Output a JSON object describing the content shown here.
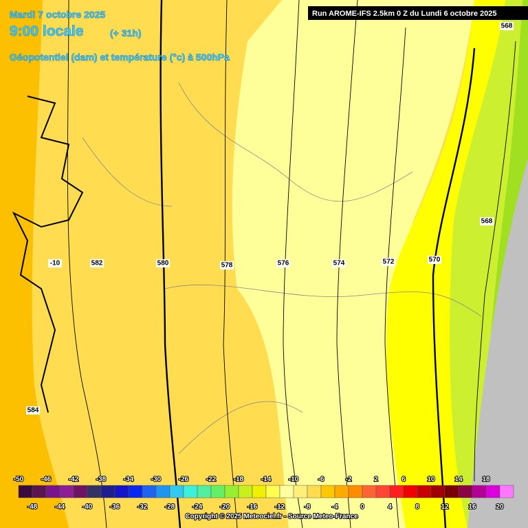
{
  "header": {
    "date": "Mardi 7 octobre 2025",
    "time": "9:00 locale",
    "lead": "(+ 31h)",
    "subtitle": "Géopotentiel (dam) et température (°c) à 500hPa",
    "run": "Run AROME-IFS 2.5km 0 Z du Lundi 6 octobre 2025"
  },
  "contour_labels": [
    "568",
    "-10",
    "582",
    "580",
    "578",
    "576",
    "574",
    "572",
    "570",
    "568",
    "584"
  ],
  "colorbar": {
    "top_labels": [
      -50,
      -46,
      -42,
      -38,
      -34,
      -30,
      -26,
      -22,
      -18,
      -14,
      -10,
      -6,
      -2,
      2,
      6,
      10,
      14,
      18
    ],
    "bottom_labels": [
      -48,
      -44,
      -40,
      -36,
      -32,
      -28,
      -24,
      -20,
      -16,
      -12,
      -8,
      -4,
      0,
      4,
      8,
      12,
      16,
      20
    ],
    "colors": [
      "#3c0a3c",
      "#5a1450",
      "#78148c",
      "#8c1e96",
      "#6e1464",
      "#323264",
      "#1e1e8c",
      "#1414c8",
      "#0a28f0",
      "#1e64f0",
      "#1e96f0",
      "#32c8f0",
      "#3cf0dc",
      "#50f0a0",
      "#64f064",
      "#96f032",
      "#c8f01e",
      "#f0f000",
      "#ffff50",
      "#ffffa0",
      "#fff078",
      "#ffdc50",
      "#ffc800",
      "#ffaa00",
      "#ff8c00",
      "#ff6432",
      "#ff4632",
      "#ff1e1e",
      "#f00000",
      "#c80000",
      "#a00000",
      "#780000",
      "#8c0046",
      "#b40096",
      "#dc00dc",
      "#ff78ff"
    ]
  },
  "copyright": "Copyright © 2025 Meteociel.fr - Source Meteo-France"
}
